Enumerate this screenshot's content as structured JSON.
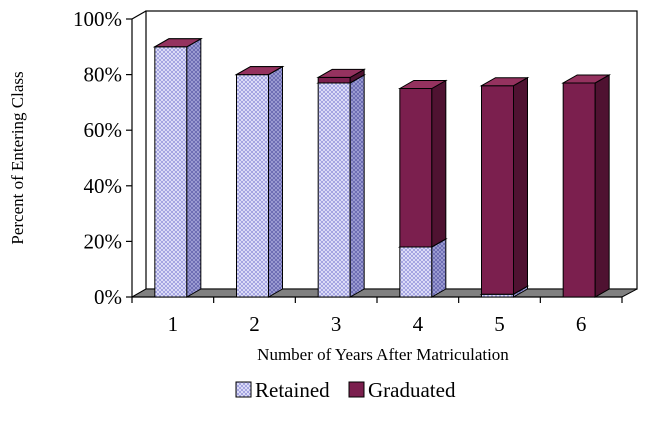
{
  "chart_data": {
    "type": "bar",
    "stacked": true,
    "three_d": true,
    "categories": [
      "1",
      "2",
      "3",
      "4",
      "5",
      "6"
    ],
    "series": [
      {
        "name": "Retained",
        "values": [
          90,
          80,
          77,
          18,
          1,
          0
        ],
        "color": "#d4d4f8",
        "pattern": "crosshatch-light"
      },
      {
        "name": "Graduated",
        "values": [
          0,
          0,
          2,
          57,
          75,
          77
        ],
        "color": "#7b1f4e"
      }
    ],
    "xlabel": "Number of Years After Matriculation",
    "ylabel": "Percent of Entering Class",
    "ylim": [
      0,
      100
    ],
    "yticks": [
      "0%",
      "20%",
      "40%",
      "60%",
      "80%",
      "100%"
    ],
    "grid": false,
    "legend": "bottom"
  }
}
